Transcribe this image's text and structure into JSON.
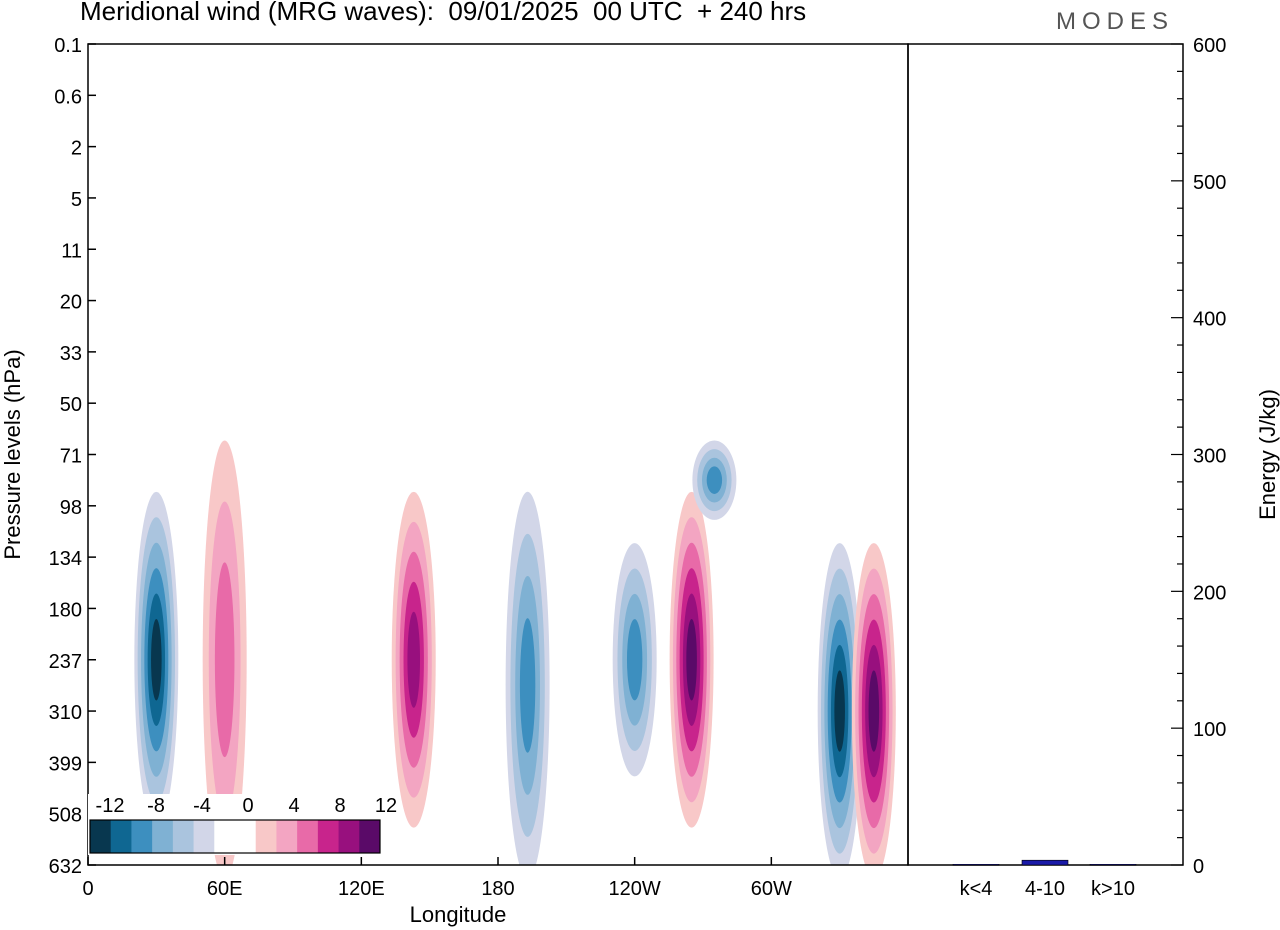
{
  "title": "Meridional wind (MRG waves):  09/01/2025  00 UTC  + 240 hrs",
  "logo": "MODES",
  "chart_data": [
    {
      "type": "heatmap",
      "name": "meridional-wind-section",
      "xlabel": "Longitude",
      "ylabel": "Pressure levels (hPa)",
      "x_ticks": [
        "0",
        "60E",
        "120E",
        "180",
        "120W",
        "60W"
      ],
      "y_ticks": [
        "0.1",
        "0.6",
        "2",
        "5",
        "11",
        "20",
        "33",
        "50",
        "71",
        "98",
        "134",
        "180",
        "237",
        "310",
        "399",
        "508",
        "632"
      ],
      "xlim": [
        0,
        360
      ],
      "colorbar": {
        "labels": [
          "-12",
          "-8",
          "-4",
          "0",
          "4",
          "8",
          "12"
        ],
        "colors": [
          "#08374f",
          "#0f6792",
          "#3d8fbf",
          "#7fb1d3",
          "#aac4de",
          "#d2d6e8",
          "#ffffff",
          "#ffffff",
          "#f8c8c8",
          "#f3a5c2",
          "#e86aa8",
          "#c8248c",
          "#98107e",
          "#5a0a68"
        ]
      },
      "features": [
        {
          "lon": 30,
          "p_top": 98,
          "p_bot": 508,
          "sign": -1,
          "peak": -14
        },
        {
          "lon": 60,
          "p_top": 71,
          "p_bot": 632,
          "sign": 1,
          "peak": 6
        },
        {
          "lon": 143,
          "p_top": 98,
          "p_bot": 508,
          "sign": 1,
          "peak": 12
        },
        {
          "lon": 193,
          "p_top": 98,
          "p_bot": 632,
          "sign": -1,
          "peak": -8
        },
        {
          "lon": 240,
          "p_top": 134,
          "p_bot": 399,
          "sign": -1,
          "peak": -9
        },
        {
          "lon": 265,
          "p_top": 98,
          "p_bot": 508,
          "sign": 1,
          "peak": 14
        },
        {
          "lon": 275,
          "p_top": 71,
          "p_bot": 98,
          "sign": -1,
          "peak": -10
        },
        {
          "lon": 330,
          "p_top": 134,
          "p_bot": 632,
          "sign": -1,
          "peak": -16
        },
        {
          "lon": 345,
          "p_top": 134,
          "p_bot": 632,
          "sign": 1,
          "peak": 16
        }
      ]
    },
    {
      "type": "bar",
      "name": "energy-bars",
      "categories": [
        "k<4",
        "4-10",
        "k>10"
      ],
      "values": [
        0.5,
        3.5,
        0.5
      ],
      "ylabel": "Energy (J/kg)",
      "ylim": [
        0,
        600
      ],
      "y_ticks": [
        "0",
        "100",
        "200",
        "300",
        "400",
        "500",
        "600"
      ],
      "bar_color": "#1a1aa8"
    }
  ]
}
